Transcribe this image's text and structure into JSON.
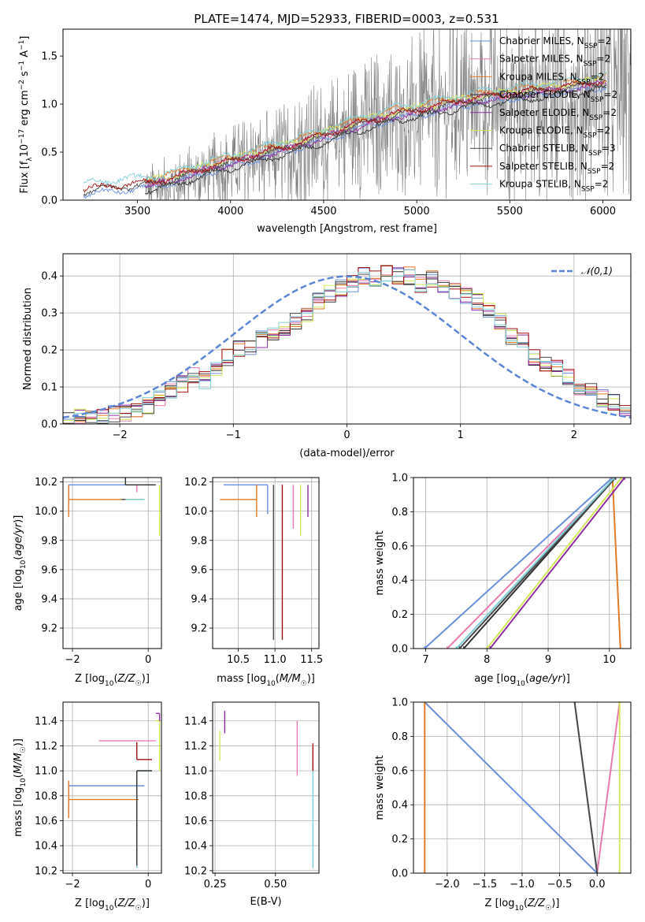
{
  "title": "PLATE=1474, MJD=52933, FIBERID=0003, z=0.531",
  "colors": {
    "Chabrier MILES": "#6a8fdb",
    "Salpeter MILES": "#e87bb0",
    "Kroupa MILES": "#e07b28",
    "Chabrier ELODIE": "#333333",
    "Salpeter ELODIE": "#8e2ea0",
    "Kroupa ELODIE": "#d4e85a",
    "Chabrier STELIB": "#4a4a4a",
    "Salpeter STELIB": "#a01010",
    "Kroupa STELIB": "#80cfd8",
    "data": "#808080",
    "gauss": "#5b86d6"
  },
  "chart_data": [
    {
      "id": "spectrum",
      "type": "line",
      "xlabel": "wavelength [Angstrom, rest frame]",
      "ylabel": "Flux [f_λ 10^-17 erg cm^-2 s^-1 A^-1]",
      "xlim": [
        3100,
        6150
      ],
      "ylim": [
        0,
        1.78
      ],
      "xticks": [
        "3500",
        "4000",
        "4500",
        "5000",
        "5500",
        "6000"
      ],
      "yticks": [
        "0.0",
        "0.5",
        "1.0",
        "1.5"
      ],
      "legend": [
        {
          "label": "Chabrier MILES, N_SSP=2",
          "model": "Chabrier MILES"
        },
        {
          "label": "Salpeter MILES, N_SSP=2",
          "model": "Salpeter MILES"
        },
        {
          "label": "Kroupa MILES, N_SSP=2",
          "model": "Kroupa MILES"
        },
        {
          "label": "Chabrier ELODIE, N_SSP=2",
          "model": "Chabrier ELODIE"
        },
        {
          "label": "Salpeter ELODIE, N_SSP=2",
          "model": "Salpeter ELODIE"
        },
        {
          "label": "Kroupa ELODIE, N_SSP=2",
          "model": "Kroupa ELODIE"
        },
        {
          "label": "Chabrier STELIB, N_SSP=3",
          "model": "Chabrier STELIB"
        },
        {
          "label": "Salpeter STELIB, N_SSP=2",
          "model": "Salpeter STELIB"
        },
        {
          "label": "Kroupa STELIB, N_SSP=2",
          "model": "Kroupa STELIB"
        }
      ],
      "legend_position": "upper right",
      "model_curves": [
        {
          "x": [
            3210,
            3400,
            3550,
            3700,
            3900,
            4100,
            4300,
            4500,
            4700,
            4900,
            5100,
            5300,
            5500,
            5700,
            5900,
            6000
          ],
          "y": [
            0.05,
            0.1,
            0.12,
            0.18,
            0.3,
            0.4,
            0.5,
            0.62,
            0.75,
            0.85,
            0.92,
            1.0,
            1.05,
            1.1,
            1.15,
            1.18
          ]
        }
      ]
    },
    {
      "id": "residuals",
      "type": "step",
      "xlabel": "(data-model)/error",
      "ylabel": "Normed distribution",
      "xlim": [
        -2.5,
        2.5
      ],
      "ylim": [
        0,
        0.46
      ],
      "xticks": [
        "−2",
        "−1",
        "0",
        "1",
        "2"
      ],
      "yticks": [
        "0.0",
        "0.1",
        "0.2",
        "0.3",
        "0.4"
      ],
      "legend": [
        {
          "label": "𝒩(0,1)"
        }
      ],
      "legend_position": "upper right",
      "bin_width": 0.1,
      "x_start": -2.5,
      "histogram_mean": [
        0.01,
        0.02,
        0.02,
        0.02,
        0.03,
        0.03,
        0.04,
        0.05,
        0.07,
        0.09,
        0.11,
        0.13,
        0.12,
        0.15,
        0.18,
        0.2,
        0.2,
        0.23,
        0.25,
        0.25,
        0.28,
        0.3,
        0.33,
        0.35,
        0.37,
        0.38,
        0.4,
        0.39,
        0.41,
        0.4,
        0.4,
        0.38,
        0.39,
        0.38,
        0.36,
        0.35,
        0.33,
        0.31,
        0.28,
        0.24,
        0.23,
        0.18,
        0.16,
        0.15,
        0.13,
        0.1,
        0.09,
        0.07,
        0.06,
        0.04
      ]
    },
    {
      "id": "age-vs-Z",
      "type": "errorbar",
      "xlabel": "Z [log10(Z/Z☉)]",
      "ylabel": "age [log10(age/yr)]",
      "xlim": [
        -2.25,
        0.35
      ],
      "ylim": [
        9.06,
        10.23
      ],
      "xticks": [
        "−2",
        "0"
      ],
      "yticks": [
        "9.2",
        "9.4",
        "9.6",
        "9.8",
        "10.0",
        "10.2"
      ],
      "points": [
        {
          "model": "Chabrier MILES",
          "x": -2.1,
          "y": 10.18,
          "xerr": [
            0,
            2.2
          ],
          "yerr": [
            0.15,
            0.0
          ]
        },
        {
          "model": "Kroupa MILES",
          "x": -2.1,
          "y": 10.08,
          "xerr": [
            0,
            1.9
          ],
          "yerr": [
            0.12,
            0.1
          ]
        },
        {
          "model": "Salpeter MILES",
          "x": -0.3,
          "y": 10.18,
          "xerr": [
            0.3,
            0.5
          ],
          "yerr": [
            0.05,
            0.0
          ]
        },
        {
          "model": "Chabrier STELIB",
          "x": -0.6,
          "y": 10.08,
          "xerr": [
            0.1,
            0.5
          ],
          "yerr": [
            0,
            0
          ]
        },
        {
          "model": "Kroupa STELIB",
          "x": -0.6,
          "y": 10.08,
          "xerr": [
            0,
            0.5
          ],
          "yerr": [
            0,
            0
          ]
        },
        {
          "model": "Chabrier ELODIE",
          "x": -0.6,
          "y": 10.18,
          "xerr": [
            0,
            0.8
          ],
          "yerr": [
            0.0,
            1.06
          ]
        },
        {
          "model": "Kroupa ELODIE",
          "x": 0.3,
          "y": 10.18,
          "xerr": [
            0,
            0
          ],
          "yerr": [
            0.35,
            0.0
          ]
        }
      ]
    },
    {
      "id": "age-vs-mass",
      "type": "errorbar",
      "xlabel": "mass [log10(M/M☉)]",
      "ylabel": "",
      "xlim": [
        10.15,
        11.6
      ],
      "ylim": [
        9.06,
        10.23
      ],
      "xticks": [
        "10.5",
        "11.0",
        "11.5"
      ],
      "yticks": [
        "9.2",
        "9.4",
        "9.6",
        "9.8",
        "10.0",
        "10.2"
      ],
      "points": [
        {
          "model": "Chabrier MILES",
          "x": 10.9,
          "y": 10.18,
          "xerr": [
            0.6,
            0.0
          ],
          "yerr": [
            0.2,
            0.0
          ]
        },
        {
          "model": "Kroupa MILES",
          "x": 10.75,
          "y": 10.08,
          "xerr": [
            0.5,
            0.0
          ],
          "yerr": [
            0.12,
            0.1
          ]
        },
        {
          "model": "Salpeter MILES",
          "x": 11.25,
          "y": 10.18,
          "xerr": [
            0,
            0
          ],
          "yerr": [
            0.3,
            0.0
          ]
        },
        {
          "model": "Chabrier STELIB",
          "x": 10.98,
          "y": 10.18,
          "xerr": [
            0,
            0
          ],
          "yerr": [
            1.06,
            0.0
          ]
        },
        {
          "model": "Salpeter STELIB",
          "x": 11.1,
          "y": 10.18,
          "xerr": [
            0,
            0
          ],
          "yerr": [
            1.06,
            0.0
          ]
        },
        {
          "model": "Kroupa ELODIE",
          "x": 11.35,
          "y": 10.18,
          "xerr": [
            0,
            0
          ],
          "yerr": [
            0.35,
            0.0
          ]
        },
        {
          "model": "Salpeter ELODIE",
          "x": 11.45,
          "y": 10.18,
          "xerr": [
            0,
            0
          ],
          "yerr": [
            0.22,
            0.0
          ]
        }
      ]
    },
    {
      "id": "weight-vs-age",
      "type": "line",
      "xlabel": "age log10(age/yr)",
      "ylabel": "mass weight",
      "xlim": [
        6.8,
        10.35
      ],
      "ylim": [
        0,
        1.0
      ],
      "xticks": [
        "7",
        "8",
        "9",
        "10"
      ],
      "yticks": [
        "0.0",
        "0.2",
        "0.4",
        "0.6",
        "0.8",
        "1.0"
      ],
      "series": [
        {
          "model": "Chabrier MILES",
          "x": [
            6.98,
            10.05
          ],
          "y": [
            0,
            1
          ]
        },
        {
          "model": "Salpeter MILES",
          "x": [
            7.35,
            10.1
          ],
          "y": [
            0,
            1
          ]
        },
        {
          "model": "Kroupa MILES",
          "x": [
            10.05,
            10.18
          ],
          "y": [
            1,
            0
          ]
        },
        {
          "model": "Chabrier ELODIE",
          "x": [
            7.62,
            10.1
          ],
          "y": [
            0,
            1
          ]
        },
        {
          "model": "Chabrier STELIB",
          "x": [
            7.55,
            10.1
          ],
          "y": [
            0,
            1
          ]
        },
        {
          "model": "Kroupa STELIB",
          "x": [
            7.5,
            10.08
          ],
          "y": [
            0,
            1
          ]
        },
        {
          "model": "Kroupa ELODIE",
          "x": [
            8.0,
            10.2
          ],
          "y": [
            0,
            1
          ]
        },
        {
          "model": "Salpeter ELODIE",
          "x": [
            8.05,
            10.25
          ],
          "y": [
            0,
            1
          ]
        }
      ]
    },
    {
      "id": "mass-vs-Z",
      "type": "errorbar",
      "xlabel": "Z [log10(Z/Z☉)]",
      "ylabel": "mass [log10(M/M☉)]",
      "xlim": [
        -2.25,
        0.35
      ],
      "ylim": [
        10.18,
        11.55
      ],
      "xticks": [
        "−2",
        "0"
      ],
      "yticks": [
        "10.2",
        "10.4",
        "10.6",
        "10.8",
        "11.0",
        "11.2",
        "11.4"
      ],
      "points": [
        {
          "model": "Chabrier MILES",
          "x": -2.1,
          "y": 10.88,
          "xerr": [
            0,
            2.0
          ],
          "yerr": [
            0.2,
            0.0
          ]
        },
        {
          "model": "Kroupa MILES",
          "x": -2.1,
          "y": 10.77,
          "xerr": [
            0,
            1.85
          ],
          "yerr": [
            0.15,
            0.15
          ]
        },
        {
          "model": "Salpeter MILES",
          "x": -1.3,
          "y": 11.24,
          "xerr": [
            0,
            1.5
          ],
          "yerr": [
            0,
            0
          ]
        },
        {
          "model": "Salpeter STELIB",
          "x": -0.3,
          "y": 11.09,
          "xerr": [
            0,
            0.4
          ],
          "yerr": [
            0,
            0.14
          ]
        },
        {
          "model": "Kroupa STELIB",
          "x": -0.3,
          "y": 11.0,
          "xerr": [
            0,
            0.4
          ],
          "yerr": [
            0.78,
            0.0
          ]
        },
        {
          "model": "Chabrier ELODIE",
          "x": -0.3,
          "y": 11.0,
          "xerr": [
            0,
            0.4
          ],
          "yerr": [
            0.76,
            0.0
          ]
        },
        {
          "model": "Kroupa ELODIE",
          "x": 0.3,
          "y": 11.4,
          "xerr": [
            0.1,
            0.0
          ],
          "yerr": [
            0.4,
            0.0
          ]
        },
        {
          "model": "Salpeter ELODIE",
          "x": 0.3,
          "y": 11.46,
          "xerr": [
            0.1,
            0.0
          ],
          "yerr": [
            0.06,
            0.0
          ]
        }
      ]
    },
    {
      "id": "mass-vs-EBV",
      "type": "errorbar",
      "xlabel": "E(B-V)",
      "ylabel": "",
      "xlim": [
        0.24,
        0.68
      ],
      "ylim": [
        10.18,
        11.55
      ],
      "xticks": [
        "0.25",
        "0.50"
      ],
      "yticks": [
        "10.2",
        "10.4",
        "10.6",
        "10.8",
        "11.0",
        "11.2",
        "11.4"
      ],
      "points": [
        {
          "model": "Kroupa ELODIE",
          "x": 0.27,
          "y": 11.2,
          "xerr": [
            0,
            0
          ],
          "yerr": [
            0.12,
            0.12
          ]
        },
        {
          "model": "Salpeter ELODIE",
          "x": 0.29,
          "y": 11.4,
          "xerr": [
            0,
            0
          ],
          "yerr": [
            0.1,
            0.08
          ]
        },
        {
          "model": "Salpeter MILES",
          "x": 0.59,
          "y": 11.18,
          "xerr": [
            0,
            0
          ],
          "yerr": [
            0.22,
            0.22
          ]
        },
        {
          "model": "Kroupa STELIB",
          "x": 0.655,
          "y": 11.0,
          "xerr": [
            0,
            0
          ],
          "yerr": [
            0.78,
            0.1
          ]
        },
        {
          "model": "Salpeter STELIB",
          "x": 0.655,
          "y": 11.1,
          "xerr": [
            0,
            0
          ],
          "yerr": [
            0.1,
            0.12
          ]
        }
      ]
    },
    {
      "id": "weight-vs-Z",
      "type": "line",
      "xlabel": "Z [log10(Z/Z☉)]",
      "ylabel": "mass weight",
      "xlim": [
        -2.45,
        0.45
      ],
      "ylim": [
        0,
        1.0
      ],
      "xticks": [
        "−2.0",
        "−1.5",
        "−1.0",
        "−0.5",
        "0.0"
      ],
      "yticks": [
        "0.0",
        "0.2",
        "0.4",
        "0.6",
        "0.8",
        "1.0"
      ],
      "series": [
        {
          "model": "Chabrier MILES",
          "x": [
            -2.3,
            0.0
          ],
          "y": [
            1,
            0
          ]
        },
        {
          "model": "Kroupa MILES",
          "x": [
            -2.3,
            -2.3
          ],
          "y": [
            0,
            1
          ]
        },
        {
          "model": "Salpeter MILES",
          "x": [
            0.0,
            0.3
          ],
          "y": [
            0,
            1
          ]
        },
        {
          "model": "Kroupa STELIB",
          "x": [
            -0.3,
            0.0
          ],
          "y": [
            1,
            0
          ]
        },
        {
          "model": "Chabrier STELIB",
          "x": [
            -0.3,
            0.0
          ],
          "y": [
            1,
            0
          ]
        },
        {
          "model": "Kroupa ELODIE",
          "x": [
            0.3,
            0.3
          ],
          "y": [
            0,
            1
          ]
        }
      ]
    }
  ]
}
